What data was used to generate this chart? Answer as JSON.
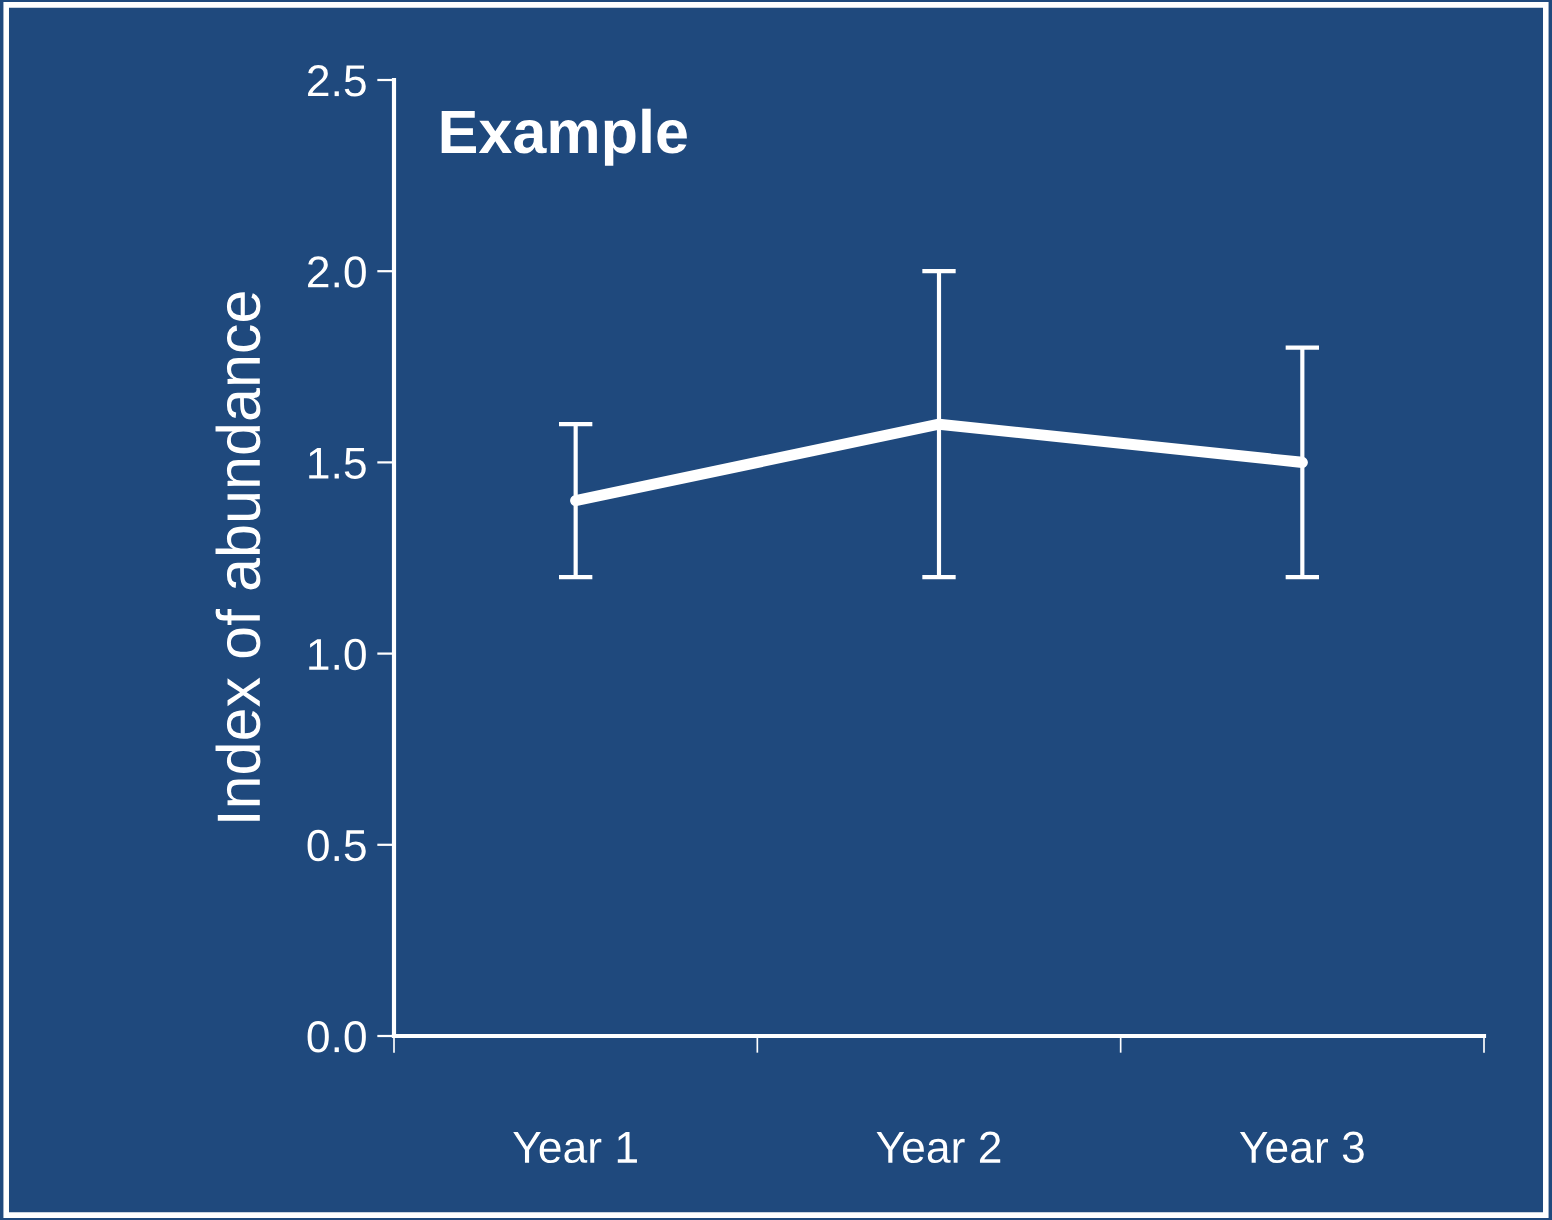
{
  "chart_data": {
    "type": "line",
    "title": "Example",
    "ylabel": "Index of abundance",
    "categories": [
      "Year 1",
      "Year 2",
      "Year 3"
    ],
    "series": [
      {
        "color": "#ffffff",
        "values": [
          1.4,
          1.6,
          1.5
        ],
        "errors": [
          0.2,
          0.4,
          0.3
        ]
      }
    ],
    "ylim": [
      0,
      2.5
    ],
    "yticks": [
      {
        "value": 0,
        "label": "0.0"
      },
      {
        "value": 0.5,
        "label": "0.5"
      },
      {
        "value": 1.0,
        "label": "1.0"
      },
      {
        "value": 1.5,
        "label": "1.5"
      },
      {
        "value": 2.0,
        "label": "2.0"
      },
      {
        "value": 2.5,
        "label": "2.5"
      }
    ],
    "grid": false,
    "marker": "none",
    "line_style": "solid"
  }
}
